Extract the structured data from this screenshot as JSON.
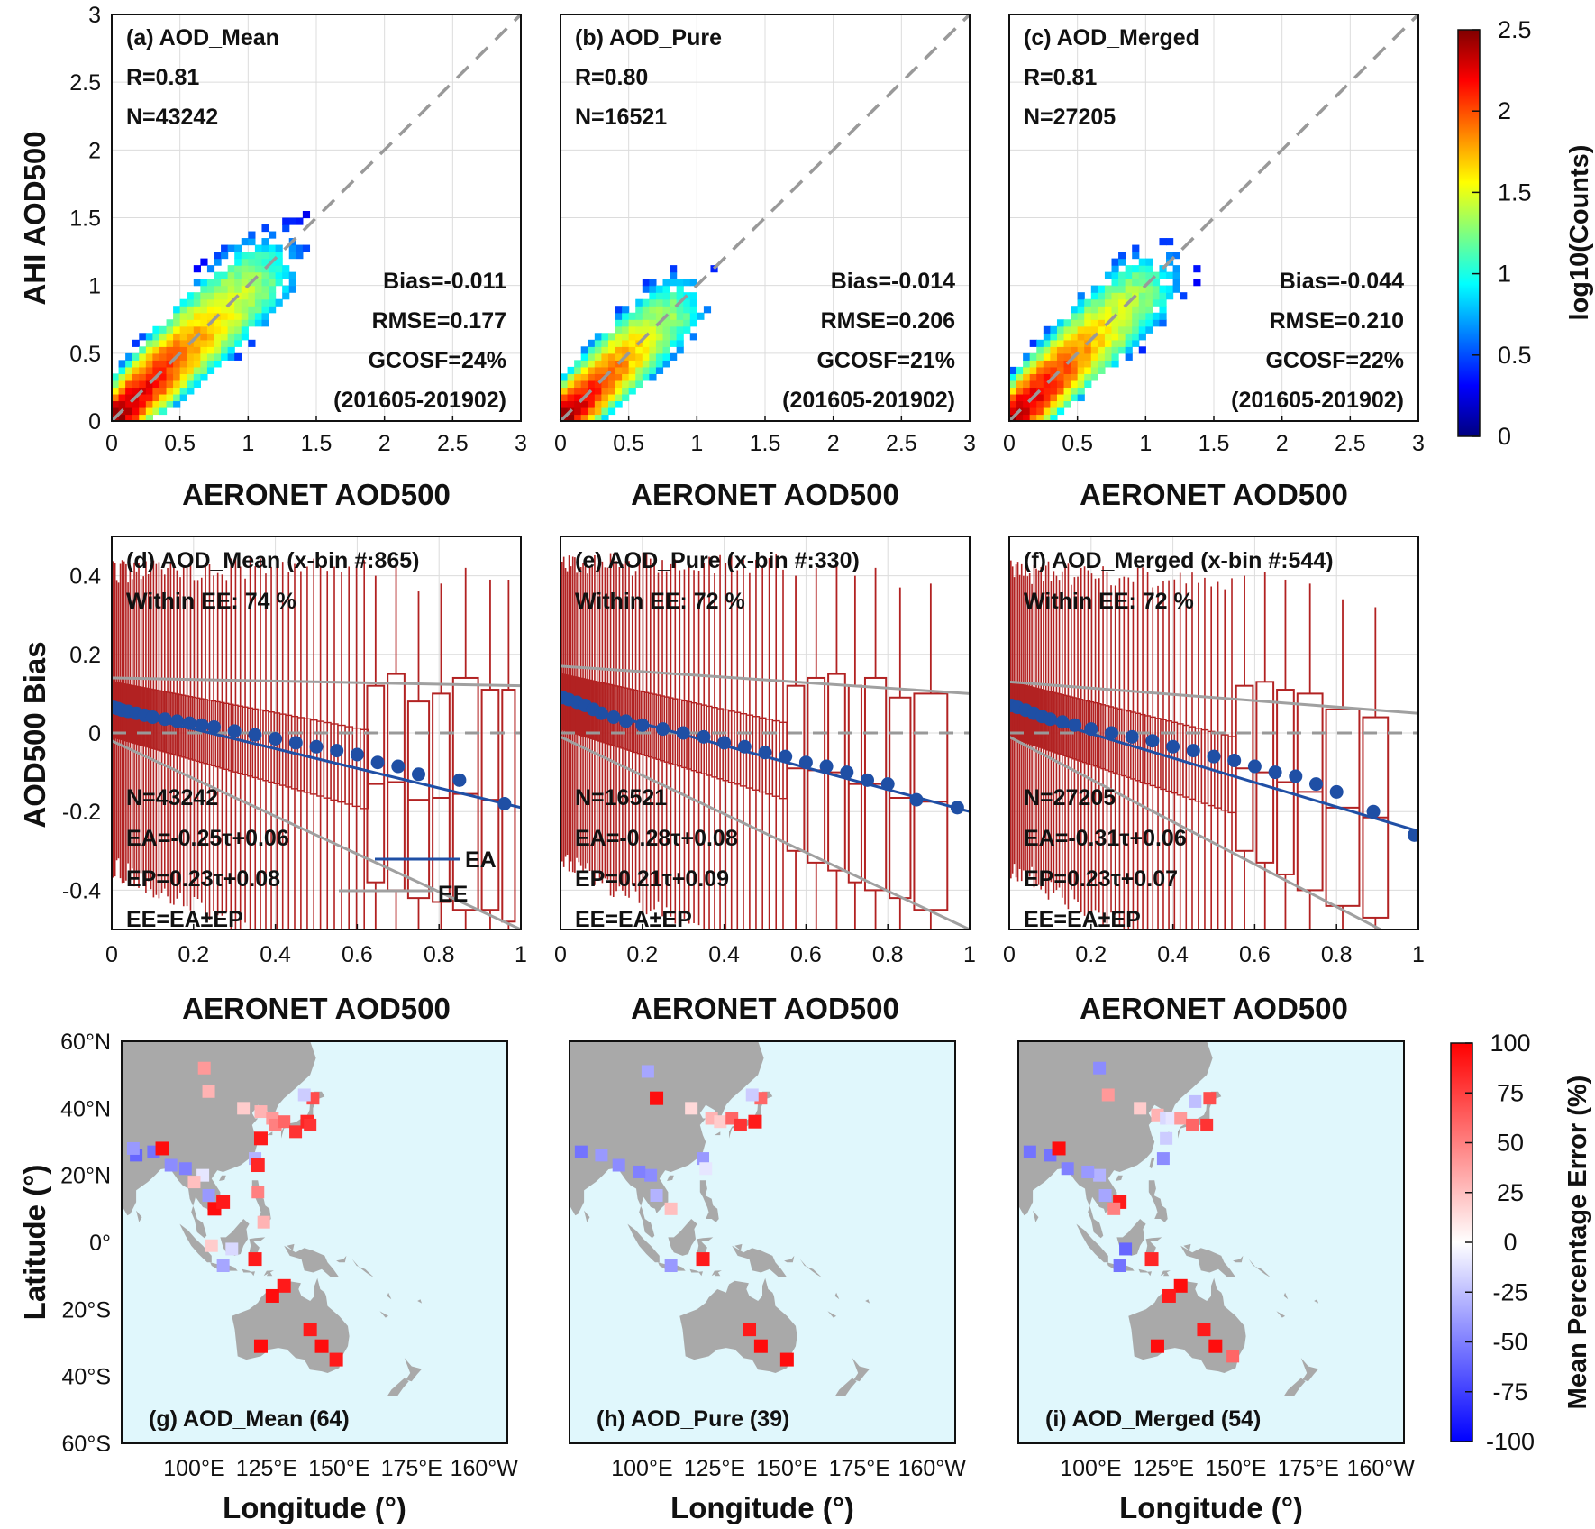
{
  "colors": {
    "jet": [
      "#00007f",
      "#0000ff",
      "#007fff",
      "#00ffff",
      "#7fff7f",
      "#ffff00",
      "#ff7f00",
      "#ff0000",
      "#7f0000"
    ],
    "box": "#b22222",
    "mean": "#1f4fa5",
    "ee": "#a0a0a0",
    "land": "#a9a9a9",
    "ocean": "#e0f7fc",
    "ref": "#999999"
  },
  "labels": {
    "aeronet": "AERONET AOD500",
    "ahi": "AHI AOD500",
    "bias": "AOD500 Bias",
    "latitude": "Latitude (°)",
    "longitude": "Longitude (°)",
    "counts": "log10(Counts)",
    "mpe": "Mean Percentage Error (%)"
  },
  "chart_data": [
    {
      "type": "heatmap",
      "title": "(a) AOD_Mean",
      "xlabel": "AERONET AOD500",
      "ylabel": "AHI AOD500",
      "xlim": [
        0,
        3
      ],
      "ylim": [
        0,
        3
      ],
      "xticks": [
        "0",
        "0.5",
        "1",
        "1.5",
        "2",
        "2.5",
        "3"
      ],
      "yticks": [
        "0",
        "0.5",
        "1",
        "1.5",
        "2",
        "2.5",
        "3"
      ],
      "stats": [
        "R=0.81",
        "N=43242"
      ],
      "stats2": [
        "Bias=-0.011",
        "RMSE=0.177",
        "GCOSF=24%",
        "(201605-201902)"
      ],
      "reference_line": "1:1",
      "spread": 1.0,
      "colorbar": {
        "label": "log10(Counts)",
        "range": [
          0,
          2.5
        ],
        "ticks": [
          "0",
          "0.5",
          "1",
          "1.5",
          "2",
          "2.5"
        ]
      }
    },
    {
      "type": "heatmap",
      "title": "(b) AOD_Pure",
      "xlabel": "AERONET AOD500",
      "ylabel": "",
      "xlim": [
        0,
        3
      ],
      "ylim": [
        0,
        3
      ],
      "xticks": [
        "0",
        "0.5",
        "1",
        "1.5",
        "2",
        "2.5",
        "3"
      ],
      "stats": [
        "R=0.80",
        "N=16521"
      ],
      "stats2": [
        "Bias=-0.014",
        "RMSE=0.206",
        "GCOSF=21%",
        "(201605-201902)"
      ],
      "reference_line": "1:1",
      "spread": 0.75
    },
    {
      "type": "heatmap",
      "title": "(c) AOD_Merged",
      "xlabel": "AERONET AOD500",
      "ylabel": "",
      "xlim": [
        0,
        3
      ],
      "ylim": [
        0,
        3
      ],
      "xticks": [
        "0",
        "0.5",
        "1",
        "1.5",
        "2",
        "2.5",
        "3"
      ],
      "stats": [
        "R=0.81",
        "N=27205"
      ],
      "stats2": [
        "Bias=-0.044",
        "RMSE=0.210",
        "GCOSF=22%",
        "(201605-201902)"
      ],
      "reference_line": "1:1",
      "spread": 0.9
    },
    {
      "type": "box",
      "title": "(d) AOD_Mean (x-bin #:865)",
      "within": "Within EE: 74 %",
      "xlabel": "AERONET AOD500",
      "ylabel": "AOD500 Bias",
      "xlim": [
        0,
        1
      ],
      "ylim": [
        -0.5,
        0.5
      ],
      "xticks": [
        "0",
        "0.2",
        "0.4",
        "0.6",
        "0.8",
        "1"
      ],
      "yticks": [
        "-0.4",
        "-0.2",
        "0",
        "0.2",
        "0.4"
      ],
      "stats": [
        "N=43242",
        "EA=-0.25τ+0.06",
        "EP=0.23τ+0.08",
        "EE=EA±EP"
      ],
      "legend": [
        "EA",
        "EE"
      ],
      "ea": {
        "slope": -0.25,
        "intercept": 0.06
      },
      "ep": {
        "slope": 0.23,
        "intercept": 0.08
      },
      "mean_points": [
        [
          0.005,
          0.065
        ],
        [
          0.015,
          0.062
        ],
        [
          0.025,
          0.058
        ],
        [
          0.04,
          0.055
        ],
        [
          0.06,
          0.05
        ],
        [
          0.08,
          0.045
        ],
        [
          0.1,
          0.04
        ],
        [
          0.13,
          0.035
        ],
        [
          0.16,
          0.03
        ],
        [
          0.19,
          0.025
        ],
        [
          0.22,
          0.02
        ],
        [
          0.25,
          0.015
        ],
        [
          0.3,
          0.005
        ],
        [
          0.35,
          -0.005
        ],
        [
          0.4,
          -0.015
        ],
        [
          0.45,
          -0.025
        ],
        [
          0.5,
          -0.035
        ],
        [
          0.55,
          -0.045
        ],
        [
          0.6,
          -0.055
        ],
        [
          0.65,
          -0.075
        ],
        [
          0.7,
          -0.085
        ],
        [
          0.75,
          -0.105
        ],
        [
          0.85,
          -0.12
        ],
        [
          0.96,
          -0.18
        ]
      ],
      "boxes": [
        [
          0.62,
          0.67,
          -0.38,
          0.12
        ],
        [
          0.67,
          0.72,
          -0.4,
          0.15
        ],
        [
          0.72,
          0.78,
          -0.42,
          0.08
        ],
        [
          0.78,
          0.83,
          -0.43,
          0.1
        ],
        [
          0.83,
          0.9,
          -0.45,
          0.14
        ],
        [
          0.9,
          0.95,
          -0.45,
          0.11
        ],
        [
          0.95,
          0.99,
          -0.48,
          0.11
        ]
      ]
    },
    {
      "type": "box",
      "title": "(e) AOD_Pure (x-bin #:330)",
      "within": "Within EE: 72 %",
      "xlabel": "AERONET AOD500",
      "ylabel": "",
      "xlim": [
        0,
        1
      ],
      "ylim": [
        -0.5,
        0.5
      ],
      "xticks": [
        "0",
        "0.2",
        "0.4",
        "0.6",
        "0.8",
        "1"
      ],
      "stats": [
        "N=16521",
        "EA=-0.28τ+0.08",
        "EP=0.21τ+0.09",
        "EE=EA±EP"
      ],
      "ea": {
        "slope": -0.28,
        "intercept": 0.08
      },
      "ep": {
        "slope": 0.21,
        "intercept": 0.09
      },
      "mean_points": [
        [
          0.005,
          0.09
        ],
        [
          0.02,
          0.085
        ],
        [
          0.04,
          0.078
        ],
        [
          0.06,
          0.07
        ],
        [
          0.08,
          0.06
        ],
        [
          0.1,
          0.05
        ],
        [
          0.13,
          0.04
        ],
        [
          0.16,
          0.03
        ],
        [
          0.2,
          0.02
        ],
        [
          0.25,
          0.01
        ],
        [
          0.3,
          0.0
        ],
        [
          0.35,
          -0.01
        ],
        [
          0.4,
          -0.025
        ],
        [
          0.45,
          -0.035
        ],
        [
          0.5,
          -0.05
        ],
        [
          0.55,
          -0.06
        ],
        [
          0.6,
          -0.075
        ],
        [
          0.65,
          -0.085
        ],
        [
          0.7,
          -0.1
        ],
        [
          0.75,
          -0.12
        ],
        [
          0.8,
          -0.13
        ],
        [
          0.87,
          -0.17
        ],
        [
          0.97,
          -0.19
        ]
      ],
      "boxes": [
        [
          0.55,
          0.6,
          -0.3,
          0.12
        ],
        [
          0.6,
          0.65,
          -0.33,
          0.14
        ],
        [
          0.65,
          0.7,
          -0.35,
          0.15
        ],
        [
          0.7,
          0.74,
          -0.38,
          0.12
        ],
        [
          0.74,
          0.8,
          -0.4,
          0.14
        ],
        [
          0.8,
          0.86,
          -0.42,
          0.09
        ],
        [
          0.86,
          0.95,
          -0.45,
          0.1
        ]
      ]
    },
    {
      "type": "box",
      "title": "(f) AOD_Merged (x-bin #:544)",
      "within": "Within EE: 72 %",
      "xlabel": "AERONET AOD500",
      "ylabel": "",
      "xlim": [
        0,
        1
      ],
      "ylim": [
        -0.5,
        0.5
      ],
      "xticks": [
        "0",
        "0.2",
        "0.4",
        "0.6",
        "0.8",
        "1"
      ],
      "stats": [
        "N=27205",
        "EA=-0.31τ+0.06",
        "EP=0.23τ+0.07",
        "EE=EA±EP"
      ],
      "ea": {
        "slope": -0.31,
        "intercept": 0.06
      },
      "ep": {
        "slope": 0.23,
        "intercept": 0.07
      },
      "mean_points": [
        [
          0.005,
          0.07
        ],
        [
          0.02,
          0.065
        ],
        [
          0.04,
          0.058
        ],
        [
          0.06,
          0.05
        ],
        [
          0.08,
          0.042
        ],
        [
          0.1,
          0.035
        ],
        [
          0.13,
          0.028
        ],
        [
          0.16,
          0.02
        ],
        [
          0.2,
          0.01
        ],
        [
          0.25,
          0.0
        ],
        [
          0.3,
          -0.01
        ],
        [
          0.35,
          -0.02
        ],
        [
          0.4,
          -0.035
        ],
        [
          0.45,
          -0.045
        ],
        [
          0.5,
          -0.06
        ],
        [
          0.55,
          -0.07
        ],
        [
          0.6,
          -0.085
        ],
        [
          0.65,
          -0.1
        ],
        [
          0.7,
          -0.11
        ],
        [
          0.75,
          -0.13
        ],
        [
          0.8,
          -0.15
        ],
        [
          0.89,
          -0.2
        ],
        [
          0.99,
          -0.26
        ]
      ],
      "boxes": [
        [
          0.55,
          0.6,
          -0.3,
          0.12
        ],
        [
          0.6,
          0.65,
          -0.33,
          0.13
        ],
        [
          0.65,
          0.7,
          -0.36,
          0.11
        ],
        [
          0.7,
          0.77,
          -0.4,
          0.1
        ],
        [
          0.77,
          0.86,
          -0.44,
          0.06
        ],
        [
          0.86,
          0.93,
          -0.47,
          0.04
        ]
      ]
    },
    {
      "type": "map",
      "title": "(g) AOD_Mean (64)",
      "xlabel": "Longitude (°)",
      "ylabel": "Latitude (°)",
      "lon_range": [
        75,
        210
      ],
      "lat_range": [
        -60,
        60
      ],
      "xticks": [
        "100°E",
        "125°E",
        "150°E",
        "175°E",
        "160°W"
      ],
      "yticks": [
        "60°N",
        "40°N",
        "20°N",
        "0°",
        "20°S",
        "40°S",
        "60°S"
      ],
      "colorbar": {
        "label": "Mean Percentage Error (%)",
        "range": [
          -100,
          100
        ],
        "ticks": [
          "100",
          "75",
          "50",
          "25",
          "0",
          "-25",
          "-50",
          "-75",
          "-100"
        ]
      },
      "sites": [
        [
          103.5,
          52,
          40
        ],
        [
          105,
          45,
          30
        ],
        [
          117,
          40,
          20
        ],
        [
          123,
          39,
          30
        ],
        [
          127,
          37,
          40
        ],
        [
          128,
          35,
          50
        ],
        [
          131,
          36,
          60
        ],
        [
          135,
          33,
          80
        ],
        [
          139,
          36,
          85
        ],
        [
          140,
          35,
          80
        ],
        [
          141,
          43,
          70
        ],
        [
          138,
          44,
          -20
        ],
        [
          123,
          31,
          90
        ],
        [
          121,
          25,
          -30
        ],
        [
          122,
          23,
          85
        ],
        [
          122,
          15,
          50
        ],
        [
          124,
          6,
          30
        ],
        [
          121,
          -5,
          90
        ],
        [
          110,
          -7,
          -35
        ],
        [
          113,
          -2,
          -15
        ],
        [
          106,
          -1,
          20
        ],
        [
          107,
          10,
          95
        ],
        [
          110,
          12,
          90
        ],
        [
          105,
          14,
          -40
        ],
        [
          103,
          20,
          -10
        ],
        [
          100,
          18,
          25
        ],
        [
          97,
          22,
          -50
        ],
        [
          92,
          23,
          -45
        ],
        [
          86,
          27,
          -55
        ],
        [
          80,
          26,
          -60
        ],
        [
          79,
          28,
          -40
        ],
        [
          89,
          28,
          95
        ],
        [
          131,
          -13,
          90
        ],
        [
          127,
          -16,
          95
        ],
        [
          140,
          -26,
          90
        ],
        [
          144,
          -31,
          95
        ],
        [
          149,
          -35,
          90
        ],
        [
          123,
          -31,
          95
        ]
      ]
    },
    {
      "type": "map",
      "title": "(h) AOD_Pure (39)",
      "xlabel": "Longitude (°)",
      "xticks": [
        "100°E",
        "125°E",
        "150°E",
        "175°E",
        "160°W"
      ],
      "sites": [
        [
          102,
          51,
          -35
        ],
        [
          105,
          43,
          95
        ],
        [
          117,
          40,
          15
        ],
        [
          124,
          37,
          30
        ],
        [
          127,
          36,
          20
        ],
        [
          131,
          37,
          60
        ],
        [
          134,
          35,
          80
        ],
        [
          139,
          36,
          90
        ],
        [
          141,
          43,
          60
        ],
        [
          138,
          44,
          -20
        ],
        [
          121,
          25,
          -40
        ],
        [
          122,
          22,
          -10
        ],
        [
          110,
          10,
          25
        ],
        [
          105,
          14,
          -30
        ],
        [
          103,
          20,
          -45
        ],
        [
          99,
          21,
          -50
        ],
        [
          92,
          23,
          -45
        ],
        [
          86,
          26,
          -40
        ],
        [
          79,
          27,
          -55
        ],
        [
          110,
          -7,
          -40
        ],
        [
          121,
          -5,
          90
        ],
        [
          137,
          -26,
          90
        ],
        [
          141,
          -31,
          95
        ],
        [
          150,
          -35,
          95
        ]
      ]
    },
    {
      "type": "map",
      "title": "(i) AOD_Merged (54)",
      "xlabel": "Longitude (°)",
      "xticks": [
        "100°E",
        "125°E",
        "150°E",
        "175°E",
        "160°W"
      ],
      "sites": [
        [
          103,
          52,
          -45
        ],
        [
          106,
          44,
          40
        ],
        [
          117,
          40,
          20
        ],
        [
          123,
          38,
          30
        ],
        [
          126,
          37,
          -15
        ],
        [
          128,
          37,
          -10
        ],
        [
          131,
          37,
          40
        ],
        [
          135,
          35,
          60
        ],
        [
          140,
          35,
          80
        ],
        [
          141,
          43,
          70
        ],
        [
          136,
          42,
          -25
        ],
        [
          126,
          31,
          -20
        ],
        [
          125,
          25,
          -45
        ],
        [
          110,
          12,
          90
        ],
        [
          108,
          10,
          50
        ],
        [
          105,
          14,
          -35
        ],
        [
          103,
          20,
          -30
        ],
        [
          99,
          21,
          -40
        ],
        [
          92,
          22,
          -50
        ],
        [
          86,
          26,
          -55
        ],
        [
          79,
          27,
          -55
        ],
        [
          89,
          28,
          95
        ],
        [
          112,
          -2,
          -60
        ],
        [
          110,
          -7,
          -55
        ],
        [
          121,
          -5,
          85
        ],
        [
          131,
          -13,
          95
        ],
        [
          127,
          -16,
          90
        ],
        [
          139,
          -26,
          90
        ],
        [
          143,
          -31,
          95
        ],
        [
          149,
          -34,
          60
        ],
        [
          123,
          -31,
          95
        ]
      ]
    }
  ]
}
